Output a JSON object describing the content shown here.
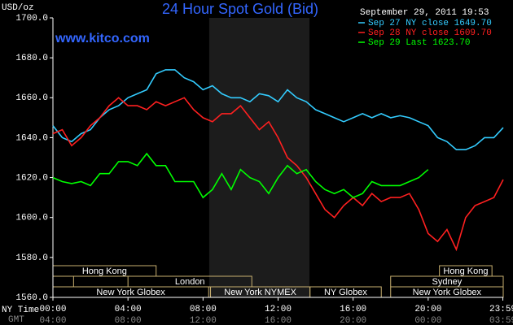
{
  "chart_data": {
    "type": "line",
    "title": "24 Hour Spot Gold (Bid)",
    "subtitle": "www.kitco.com",
    "timestamp": "September 29, 2011 19:53",
    "y_label": "USD/oz",
    "x_axis_labels": [
      "NY Time",
      "GMT"
    ],
    "xlim": [
      0,
      24
    ],
    "ylim": [
      1560,
      1700
    ],
    "xticks": [
      {
        "value": 0,
        "label": "00:00"
      },
      {
        "value": 4,
        "label": "04:00"
      },
      {
        "value": 8,
        "label": "08:00"
      },
      {
        "value": 12,
        "label": "12:00"
      },
      {
        "value": 16,
        "label": "16:00"
      },
      {
        "value": 20,
        "label": "20:00"
      },
      {
        "value": 23.98,
        "label": "23:59"
      }
    ],
    "gmt_tick_labels": [
      "04:00",
      "08:00",
      "12:00",
      "16:00",
      "20:00",
      "00:00",
      "03:59"
    ],
    "yticks": [
      {
        "value": 1560,
        "label": "1560.0"
      },
      {
        "value": 1580,
        "label": "1580.0"
      },
      {
        "value": 1600,
        "label": "1600.0"
      },
      {
        "value": 1620,
        "label": "1620.0"
      },
      {
        "value": 1640,
        "label": "1640.0"
      },
      {
        "value": 1660,
        "label": "1660.0"
      },
      {
        "value": 1680,
        "label": "1680.0"
      },
      {
        "value": 1700,
        "label": "1700.0"
      }
    ],
    "highlight": [
      8.33,
      13.67
    ],
    "x": [
      0,
      0.5,
      1,
      1.5,
      2,
      2.5,
      3,
      3.5,
      4,
      4.5,
      5,
      5.5,
      6,
      6.5,
      7,
      7.5,
      8,
      8.5,
      9,
      9.5,
      10,
      10.5,
      11,
      11.5,
      12,
      12.5,
      13,
      13.5,
      14,
      14.5,
      15,
      15.5,
      16,
      16.5,
      17,
      17.5,
      18,
      18.5,
      19,
      19.5,
      20,
      20.5,
      21,
      21.5,
      22,
      22.5,
      23,
      23.5,
      24
    ],
    "series": [
      {
        "name": "Sep 27 NY close 1649.70",
        "color": "#33ccff",
        "values": [
          1646,
          1640,
          1638,
          1642,
          1644,
          1650,
          1654,
          1656,
          1660,
          1662,
          1664,
          1672,
          1674,
          1674,
          1670,
          1668,
          1664,
          1666,
          1662,
          1660,
          1660,
          1658,
          1662,
          1661,
          1658,
          1664,
          1660,
          1658,
          1654,
          1652,
          1650,
          1648,
          1650,
          1652,
          1650,
          1652,
          1650,
          1651,
          1650,
          1648,
          1646,
          1640,
          1638,
          1634,
          1634,
          1636,
          1640,
          1640,
          1645
        ]
      },
      {
        "name": "Sep 28 NY close 1609.70",
        "color": "#ff2020",
        "values": [
          1642,
          1644,
          1636,
          1640,
          1646,
          1650,
          1656,
          1660,
          1656,
          1656,
          1654,
          1658,
          1656,
          1658,
          1660,
          1654,
          1650,
          1648,
          1652,
          1652,
          1656,
          1650,
          1644,
          1648,
          1640,
          1630,
          1626,
          1620,
          1612,
          1604,
          1600,
          1606,
          1610,
          1606,
          1612,
          1608,
          1610,
          1610,
          1612,
          1604,
          1592,
          1588,
          1594,
          1584,
          1600,
          1606,
          1608,
          1610,
          1619
        ]
      },
      {
        "name": "Sep 29 Last 1623.70",
        "color": "#00ff00",
        "values": [
          1620,
          1618,
          1617,
          1618,
          1616,
          1622,
          1622,
          1628,
          1628,
          1626,
          1632,
          1626,
          1626,
          1618,
          1618,
          1618,
          1610,
          1614,
          1622,
          1614,
          1624,
          1620,
          1618,
          1612,
          1620,
          1626,
          1622,
          1624,
          1618,
          1614,
          1612,
          1614,
          1610,
          1612,
          1618,
          1616,
          1616,
          1616,
          1618,
          1620,
          1624,
          null,
          null,
          null,
          null,
          null,
          null,
          null,
          null
        ]
      }
    ],
    "sessions": [
      [
        {
          "label": "Hong Kong",
          "start": 0,
          "end": 5.5
        },
        {
          "label": "Hong Kong",
          "start": 20.6,
          "end": 23.4
        }
      ],
      [
        {
          "label": null,
          "start": 0,
          "end": 1.1
        },
        {
          "label": "London",
          "start": 4,
          "end": 10.6
        },
        {
          "label": "Sydney",
          "start": 18,
          "end": 24
        }
      ],
      [
        {
          "label": "New York Globex",
          "start": 0,
          "end": 8.3
        },
        {
          "label": "New York NYMEX",
          "start": 8.4,
          "end": 13.7
        },
        {
          "label": "NY Globex",
          "start": 13.7,
          "end": 17.5
        },
        {
          "label": "New York Globex",
          "start": 18,
          "end": 24
        }
      ]
    ]
  }
}
